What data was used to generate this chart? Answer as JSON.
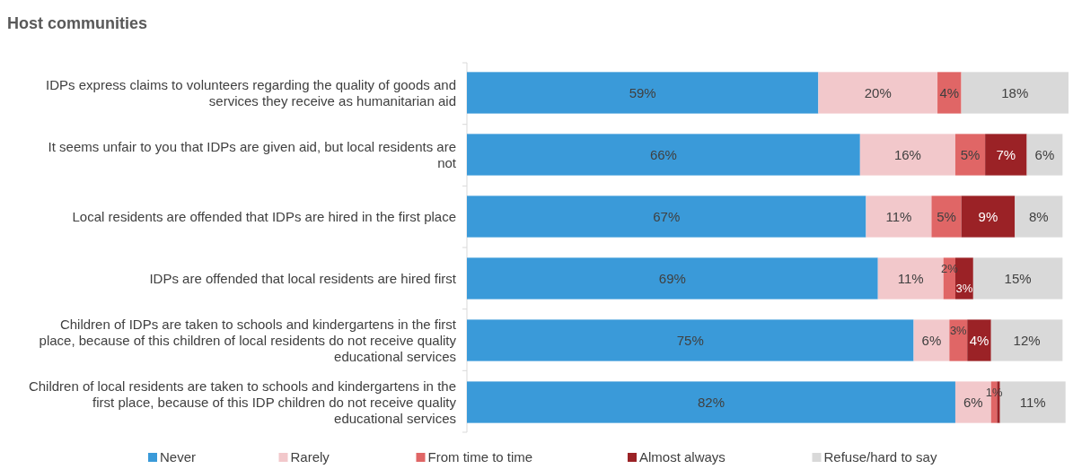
{
  "chart_data": {
    "type": "bar",
    "orientation": "horizontal",
    "stacked": true,
    "title": "Host communities",
    "categories": [
      "IDPs express claims to volunteers regarding the quality of goods and services they receive as humanitarian aid",
      "It seems unfair to you that IDPs are given aid, but local residents are not",
      "Local residents are offended that IDPs are hired in the first place",
      "IDPs are offended that local residents are hired first",
      "Children of IDPs are taken to schools and kindergartens in the first place, because of this children of local residents do not receive quality educational services",
      "Children of local residents are taken to schools and kindergartens in the first place, because of this IDP children do not receive quality educational services"
    ],
    "series": [
      {
        "name": "Never",
        "color": "#3a9ad9",
        "values": [
          59,
          66,
          67,
          69,
          75,
          82
        ],
        "value_labels": [
          "59%",
          "66%",
          "67%",
          "69%",
          "75%",
          "82%"
        ]
      },
      {
        "name": "Rarely",
        "color": "#f2c8cb",
        "values": [
          20,
          16,
          11,
          11,
          6,
          6
        ],
        "value_labels": [
          "20%",
          "16%",
          "11%",
          "11%",
          "6%",
          "6%"
        ]
      },
      {
        "name": "From time to time",
        "color": "#e06666",
        "values": [
          4,
          5,
          5,
          2,
          3,
          1
        ],
        "value_labels": [
          "4%",
          "5%",
          "5%",
          "2%",
          "3%",
          "1%"
        ]
      },
      {
        "name": "Almost always",
        "color": "#9b2226",
        "values": [
          null,
          7,
          9,
          3,
          4,
          0.5
        ],
        "value_labels": [
          null,
          "7%",
          "9%",
          "3%",
          "4%",
          null
        ]
      },
      {
        "name": "Refuse/hard to say",
        "color": "#d9d9d9",
        "values": [
          18,
          6,
          8,
          15,
          12,
          11
        ],
        "value_labels": [
          "18%",
          "6%",
          "8%",
          "15%",
          "12%",
          "11%"
        ]
      }
    ],
    "legend": "bottom"
  }
}
